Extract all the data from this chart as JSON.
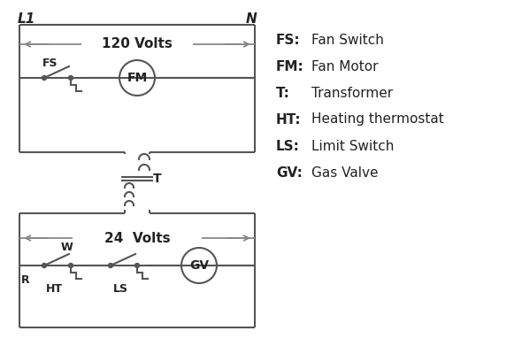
{
  "bg_color": "#ffffff",
  "line_color": "#555555",
  "arrow_color": "#888888",
  "text_color": "#222222",
  "legend": [
    [
      "FS:",
      "Fan Switch"
    ],
    [
      "FM:",
      "Fan Motor"
    ],
    [
      "T:",
      "Transformer"
    ],
    [
      "HT:",
      "Heating thermostat"
    ],
    [
      "LS:",
      "Limit Switch"
    ],
    [
      "GV:",
      "Gas Valve"
    ]
  ],
  "title_L1": "L1",
  "title_N": "N",
  "volts_120": "120 Volts",
  "volts_24": "24  Volts",
  "label_T": "T",
  "label_R": "R",
  "label_W": "W",
  "label_HT": "HT",
  "label_LS": "LS",
  "label_FS": "FS",
  "label_FM": "FM",
  "label_GV": "GV"
}
